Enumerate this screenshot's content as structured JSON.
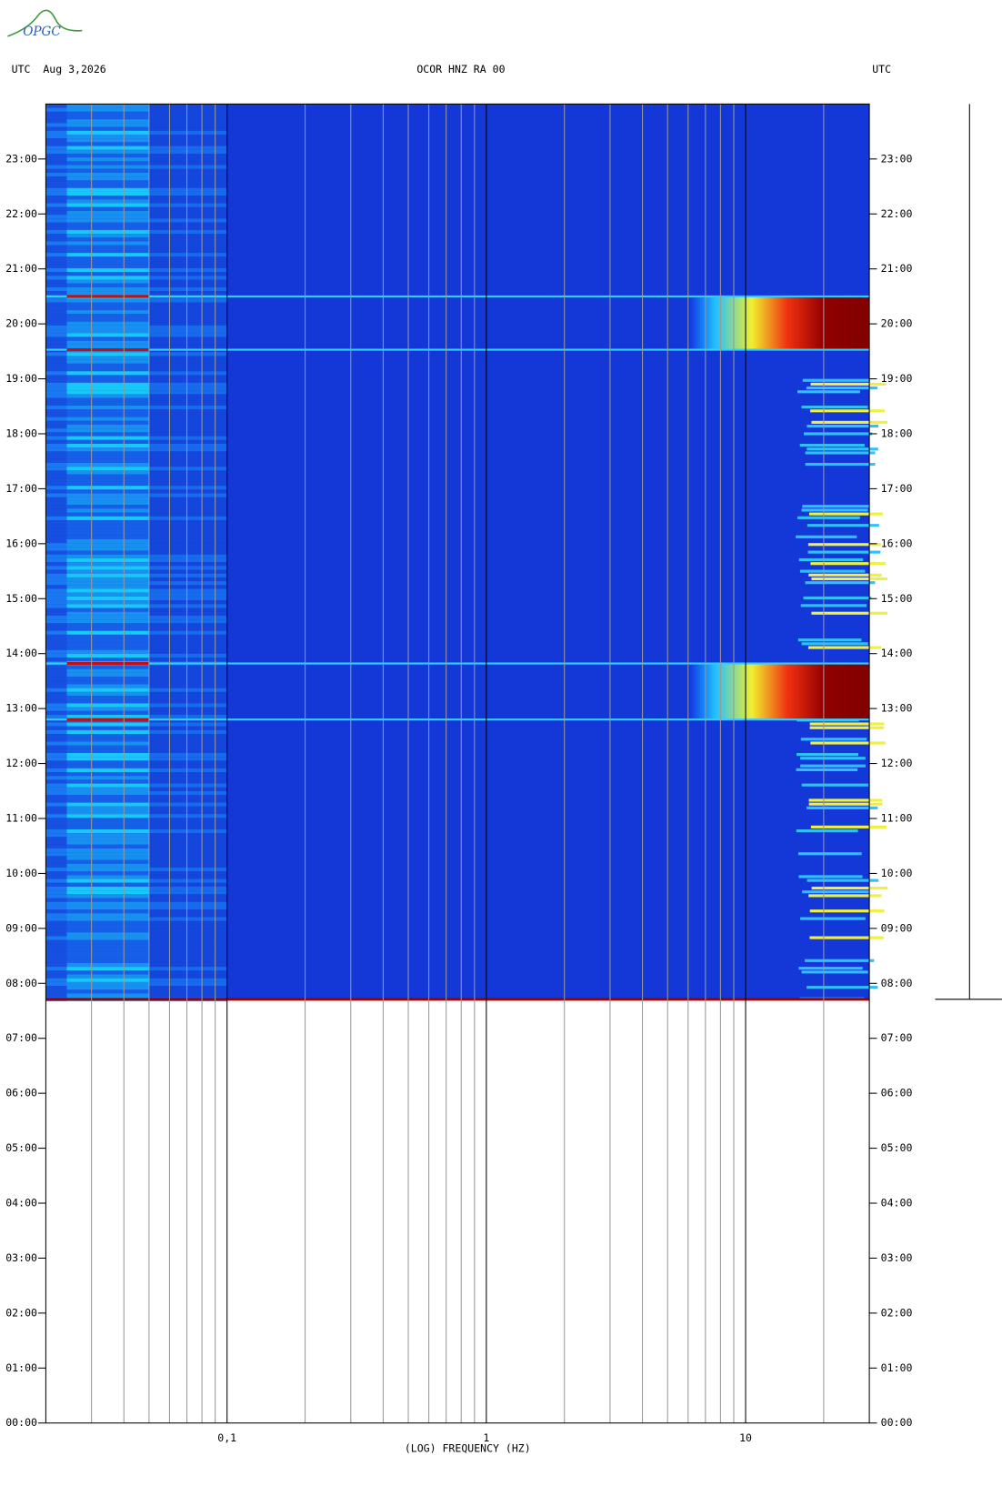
{
  "logo": "OPGC",
  "chart_data": {
    "type": "spectrogram",
    "title": "OCOR HNZ RA 00",
    "date_label": "UTC  Aug 3,2026",
    "right_label": "UTC",
    "x_label": "(LOG) FREQUENCY (HZ)",
    "xscale": "log",
    "xlim": [
      0.02,
      30
    ],
    "xticks": [
      {
        "value": 0.1,
        "label": "0,1"
      },
      1,
      10
    ],
    "xgrid": [
      0.03,
      0.04,
      0.05,
      0.06,
      0.07,
      0.08,
      0.09,
      0.2,
      0.3,
      0.4,
      0.5,
      0.6,
      0.7,
      0.8,
      0.9,
      2,
      3,
      4,
      5,
      6,
      7,
      8,
      9,
      20
    ],
    "ylim": [
      0,
      24
    ],
    "yticks": [
      {
        "value": 0,
        "label": "00:00"
      },
      {
        "value": 1,
        "label": "01:00"
      },
      {
        "value": 2,
        "label": "02:00"
      },
      {
        "value": 3,
        "label": "03:00"
      },
      {
        "value": 4,
        "label": "04:00"
      },
      {
        "value": 5,
        "label": "05:00"
      },
      {
        "value": 6,
        "label": "06:00"
      },
      {
        "value": 7,
        "label": "07:00"
      },
      {
        "value": 8,
        "label": "08:00"
      },
      {
        "value": 9,
        "label": "09:00"
      },
      {
        "value": 10,
        "label": "10:00"
      },
      {
        "value": 11,
        "label": "11:00"
      },
      {
        "value": 12,
        "label": "12:00"
      },
      {
        "value": 13,
        "label": "13:00"
      },
      {
        "value": 14,
        "label": "14:00"
      },
      {
        "value": 15,
        "label": "15:00"
      },
      {
        "value": 16,
        "label": "16:00"
      },
      {
        "value": 17,
        "label": "17:00"
      },
      {
        "value": 18,
        "label": "18:00"
      },
      {
        "value": 19,
        "label": "19:00"
      },
      {
        "value": 20,
        "label": "20:00"
      },
      {
        "value": 21,
        "label": "21:00"
      },
      {
        "value": 22,
        "label": "22:00"
      },
      {
        "value": 23,
        "label": "23:00"
      }
    ],
    "data_start": 7.71,
    "events": [
      {
        "start": 12.8,
        "end": 13.82
      },
      {
        "start": 19.53,
        "end": 20.5
      }
    ]
  }
}
